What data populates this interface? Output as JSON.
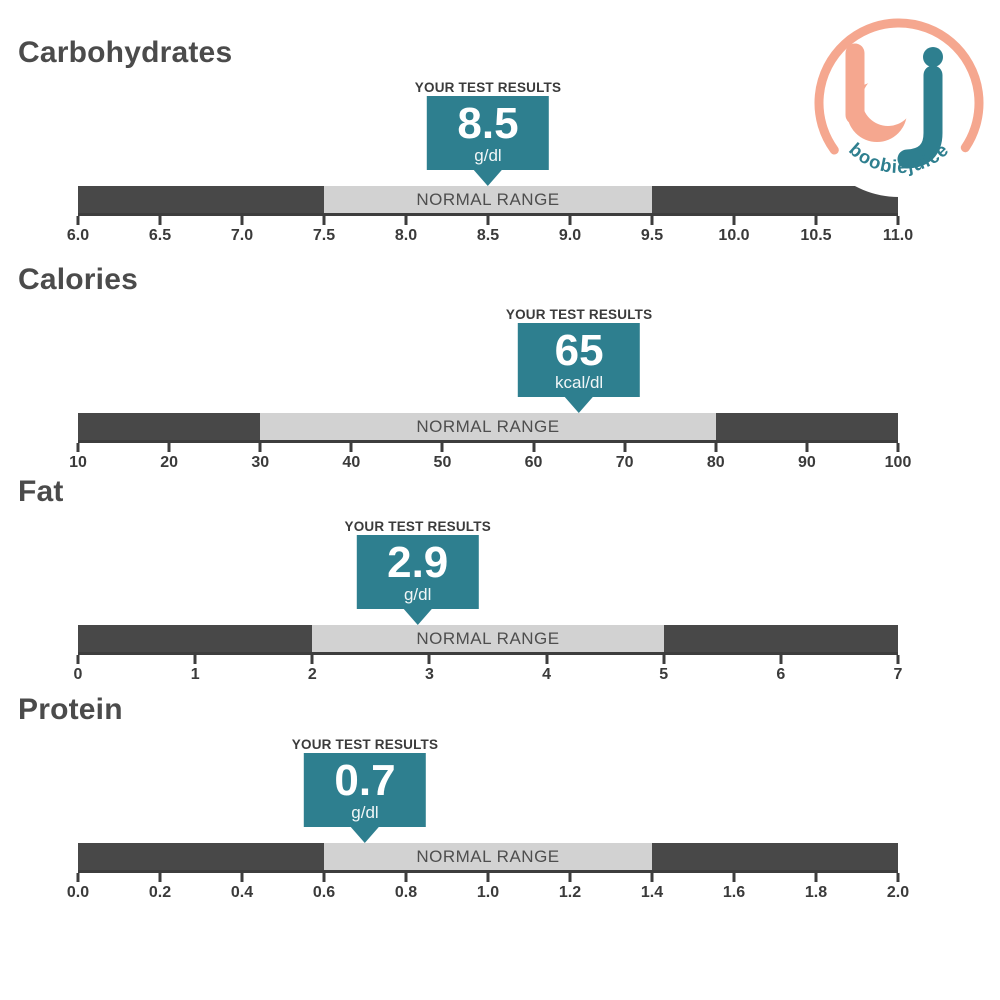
{
  "page": {
    "background": "#ffffff"
  },
  "colors": {
    "accent_teal": "#2e7f8f",
    "logo_peach": "#f5a78f",
    "bar_dark": "#484848",
    "bar_light": "#d2d2d2",
    "text_dark": "#4b4b4b"
  },
  "logo": {
    "monogram_b": "b",
    "monogram_j": "j",
    "wordmark": "boobiejuice"
  },
  "chart_data": [
    {
      "type": "bullet",
      "title": "Carbohydrates",
      "callout_label": "YOUR TEST RESULTS",
      "result": 8.5,
      "result_display": "8.5",
      "unit": "g/dl",
      "range_label": "NORMAL RANGE",
      "axis_min": 6.0,
      "axis_max": 11.0,
      "normal_range": [
        7.5,
        9.5
      ],
      "tick_labels": [
        "6.0",
        "6.5",
        "7.0",
        "7.5",
        "8.0",
        "8.5",
        "9.0",
        "9.5",
        "10.0",
        "10.5",
        "11.0"
      ]
    },
    {
      "type": "bullet",
      "title": "Calories",
      "callout_label": "YOUR TEST RESULTS",
      "result": 65,
      "result_display": "65",
      "unit": "kcal/dl",
      "range_label": "NORMAL RANGE",
      "axis_min": 10,
      "axis_max": 100,
      "normal_range": [
        30,
        80
      ],
      "tick_labels": [
        "10",
        "20",
        "30",
        "40",
        "50",
        "60",
        "70",
        "80",
        "90",
        "100"
      ]
    },
    {
      "type": "bullet",
      "title": "Fat",
      "callout_label": "YOUR TEST RESULTS",
      "result": 2.9,
      "result_display": "2.9",
      "unit": "g/dl",
      "range_label": "NORMAL RANGE",
      "axis_min": 0,
      "axis_max": 7,
      "normal_range": [
        2,
        5
      ],
      "tick_labels": [
        "0",
        "1",
        "2",
        "3",
        "4",
        "5",
        "6",
        "7"
      ]
    },
    {
      "type": "bullet",
      "title": "Protein",
      "callout_label": "YOUR TEST RESULTS",
      "result": 0.7,
      "result_display": "0.7",
      "unit": "g/dl",
      "range_label": "NORMAL RANGE",
      "axis_min": 0.0,
      "axis_max": 2.0,
      "normal_range": [
        0.6,
        1.4
      ],
      "tick_labels": [
        "0.0",
        "0.2",
        "0.4",
        "0.6",
        "0.8",
        "1.0",
        "1.2",
        "1.4",
        "1.6",
        "1.8",
        "2.0"
      ]
    }
  ]
}
